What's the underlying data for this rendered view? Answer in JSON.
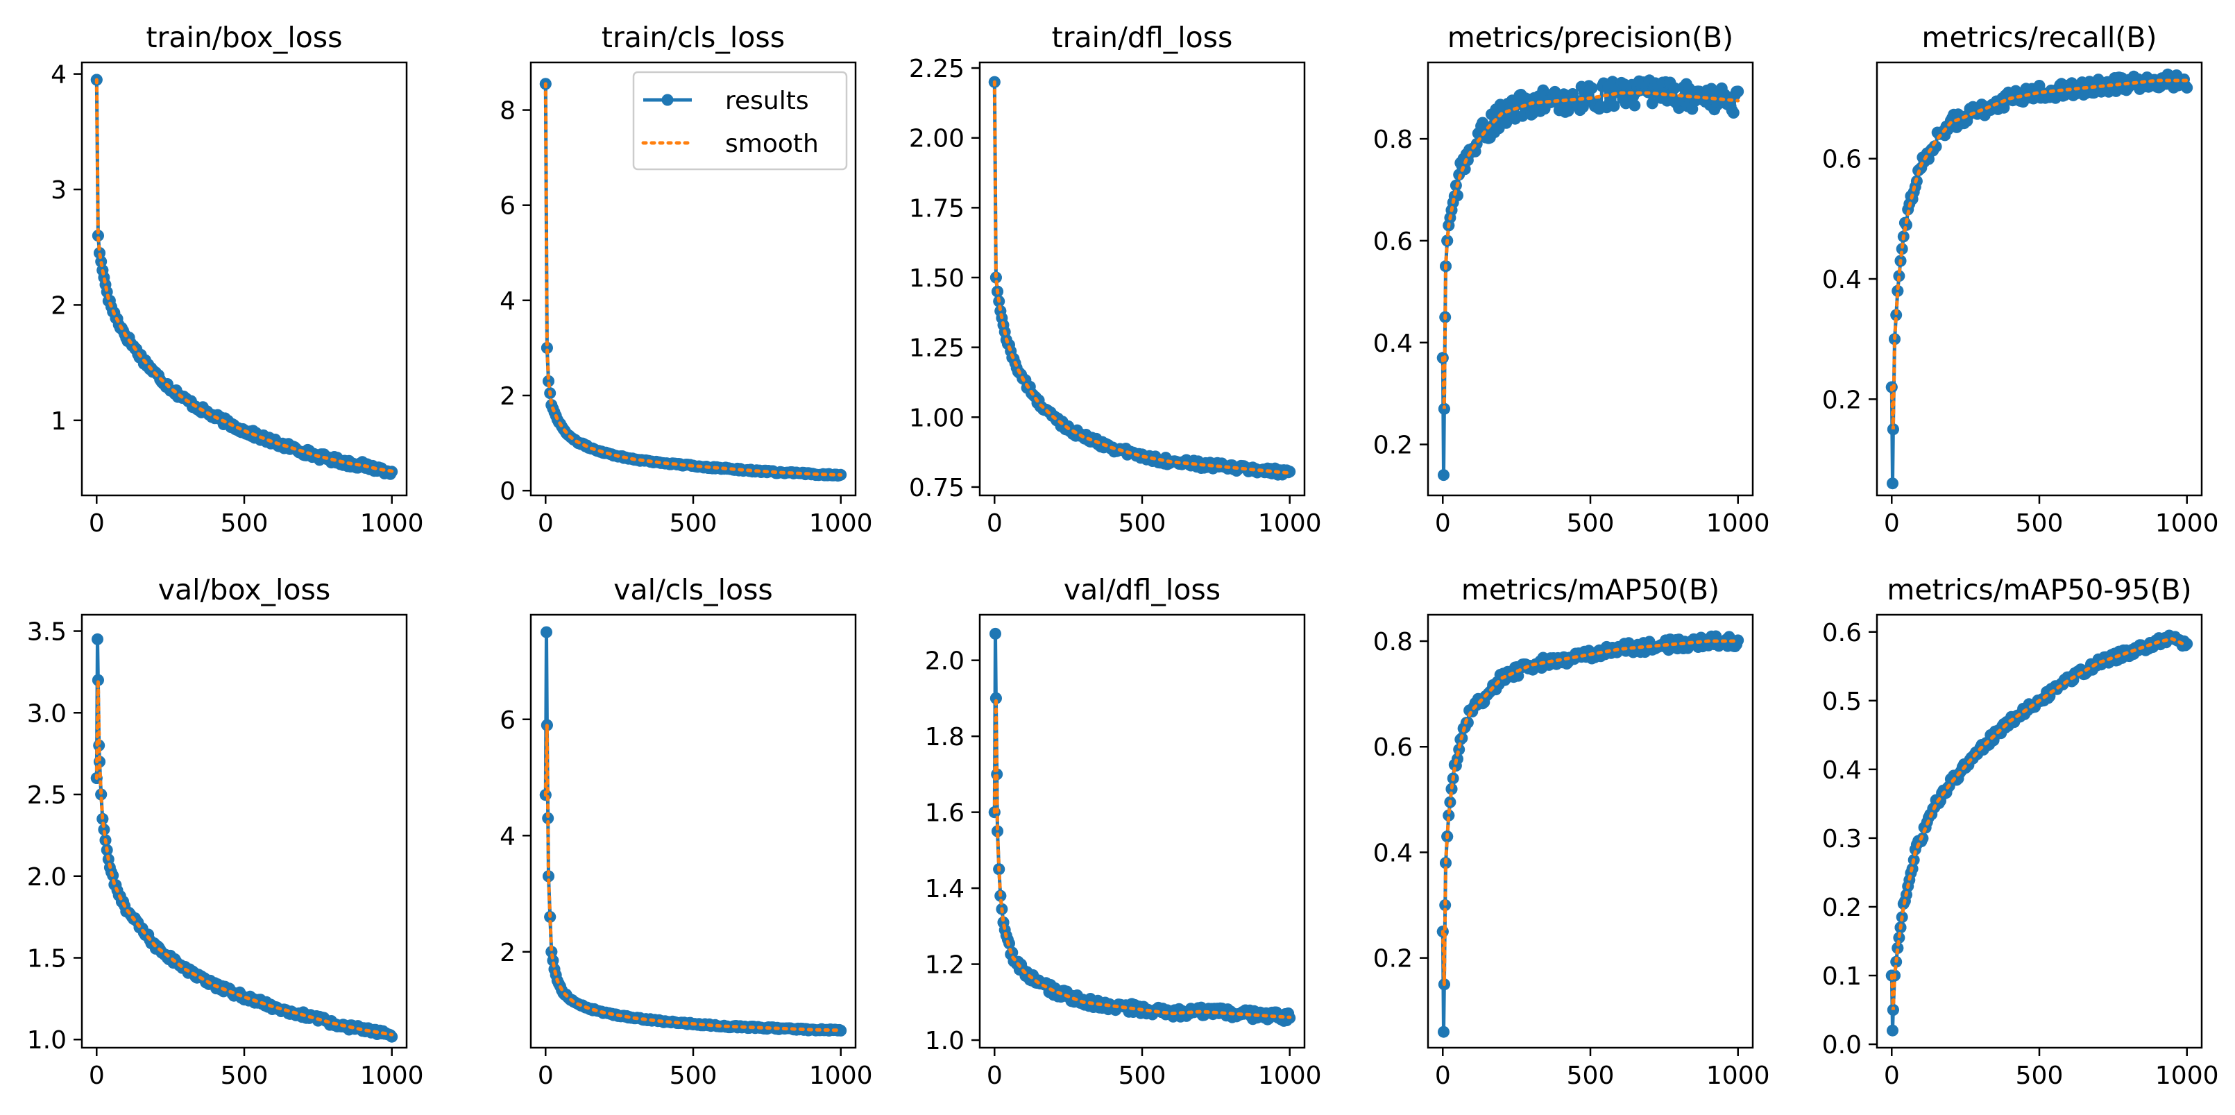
{
  "figure": {
    "legend": {
      "series_label": "results",
      "smooth_label": "smooth",
      "location": "upper right of train/cls_loss panel"
    },
    "colors": {
      "series": "#1f77b4",
      "smooth": "#ff7f0e"
    }
  },
  "chart_data": [
    {
      "type": "line",
      "title": "train/box_loss",
      "xlabel": "",
      "ylabel": "",
      "xlim": [
        -50,
        1050
      ],
      "ylim": [
        0.35,
        4.1
      ],
      "xticks": [
        0,
        500,
        1000
      ],
      "xtick_labels": [
        "0",
        "500",
        "1000"
      ],
      "yticks": [
        1,
        2,
        3,
        4
      ],
      "ytick_labels": [
        "1",
        "2",
        "3",
        "4"
      ],
      "x": [
        0,
        5,
        10,
        20,
        40,
        60,
        80,
        100,
        150,
        200,
        250,
        300,
        350,
        400,
        450,
        500,
        550,
        600,
        650,
        700,
        750,
        800,
        850,
        900,
        950,
        1000
      ],
      "values": [
        3.95,
        2.6,
        2.45,
        2.3,
        2.05,
        1.92,
        1.82,
        1.73,
        1.55,
        1.4,
        1.28,
        1.18,
        1.1,
        1.03,
        0.97,
        0.91,
        0.86,
        0.81,
        0.77,
        0.73,
        0.69,
        0.66,
        0.63,
        0.61,
        0.58,
        0.56
      ],
      "noise": 0.03
    },
    {
      "type": "line",
      "title": "train/cls_loss",
      "xlabel": "",
      "ylabel": "",
      "xlim": [
        -50,
        1050
      ],
      "ylim": [
        -0.1,
        9.0
      ],
      "xticks": [
        0,
        500,
        1000
      ],
      "xtick_labels": [
        "0",
        "500",
        "1000"
      ],
      "yticks": [
        0,
        2,
        4,
        6,
        8
      ],
      "ytick_labels": [
        "0",
        "2",
        "4",
        "6",
        "8"
      ],
      "x": [
        0,
        5,
        10,
        20,
        40,
        60,
        80,
        100,
        150,
        200,
        250,
        300,
        400,
        500,
        600,
        700,
        800,
        900,
        1000
      ],
      "values": [
        8.55,
        3.0,
        2.3,
        1.8,
        1.5,
        1.3,
        1.15,
        1.05,
        0.9,
        0.8,
        0.72,
        0.66,
        0.58,
        0.52,
        0.47,
        0.42,
        0.38,
        0.35,
        0.33
      ],
      "noise": 0.02
    },
    {
      "type": "line",
      "title": "train/dfl_loss",
      "xlabel": "",
      "ylabel": "",
      "xlim": [
        -50,
        1050
      ],
      "ylim": [
        0.72,
        2.27
      ],
      "xticks": [
        0,
        500,
        1000
      ],
      "xtick_labels": [
        "0",
        "500",
        "1000"
      ],
      "yticks": [
        0.75,
        1.0,
        1.25,
        1.5,
        1.75,
        2.0,
        2.25
      ],
      "ytick_labels": [
        "0.75",
        "1.00",
        "1.25",
        "1.50",
        "1.75",
        "2.00",
        "2.25"
      ],
      "x": [
        0,
        5,
        10,
        20,
        40,
        60,
        80,
        100,
        150,
        200,
        250,
        300,
        400,
        500,
        600,
        700,
        800,
        900,
        1000
      ],
      "values": [
        2.2,
        1.5,
        1.45,
        1.38,
        1.28,
        1.22,
        1.17,
        1.13,
        1.05,
        1.0,
        0.96,
        0.93,
        0.89,
        0.86,
        0.84,
        0.83,
        0.82,
        0.81,
        0.8
      ],
      "noise": 0.012
    },
    {
      "type": "line",
      "title": "metrics/precision(B)",
      "xlabel": "",
      "ylabel": "",
      "xlim": [
        -50,
        1050
      ],
      "ylim": [
        0.1,
        0.95
      ],
      "xticks": [
        0,
        500,
        1000
      ],
      "xtick_labels": [
        "0",
        "500",
        "1000"
      ],
      "yticks": [
        0.2,
        0.4,
        0.6,
        0.8
      ],
      "ytick_labels": [
        "0.2",
        "0.4",
        "0.6",
        "0.8"
      ],
      "x": [
        0,
        3,
        5,
        8,
        10,
        15,
        20,
        30,
        40,
        60,
        80,
        100,
        150,
        200,
        300,
        400,
        500,
        600,
        700,
        800,
        900,
        1000
      ],
      "values": [
        0.37,
        0.14,
        0.27,
        0.45,
        0.55,
        0.6,
        0.63,
        0.66,
        0.69,
        0.73,
        0.76,
        0.78,
        0.82,
        0.85,
        0.87,
        0.875,
        0.88,
        0.89,
        0.89,
        0.885,
        0.88,
        0.875
      ],
      "noise": 0.025
    },
    {
      "type": "line",
      "title": "metrics/recall(B)",
      "xlabel": "",
      "ylabel": "",
      "xlim": [
        -50,
        1050
      ],
      "ylim": [
        0.04,
        0.76
      ],
      "xticks": [
        0,
        500,
        1000
      ],
      "xtick_labels": [
        "0",
        "500",
        "1000"
      ],
      "yticks": [
        0.2,
        0.4,
        0.6
      ],
      "ytick_labels": [
        "0.2",
        "0.4",
        "0.6"
      ],
      "x": [
        0,
        3,
        5,
        10,
        20,
        30,
        40,
        60,
        80,
        100,
        150,
        200,
        300,
        400,
        500,
        600,
        700,
        800,
        900,
        1000
      ],
      "values": [
        0.22,
        0.06,
        0.15,
        0.3,
        0.38,
        0.43,
        0.47,
        0.52,
        0.56,
        0.59,
        0.63,
        0.66,
        0.68,
        0.7,
        0.71,
        0.715,
        0.72,
        0.725,
        0.73,
        0.73
      ],
      "noise": 0.012
    },
    {
      "type": "line",
      "title": "val/box_loss",
      "xlabel": "",
      "ylabel": "",
      "xlim": [
        -50,
        1050
      ],
      "ylim": [
        0.95,
        3.6
      ],
      "xticks": [
        0,
        500,
        1000
      ],
      "xtick_labels": [
        "0",
        "500",
        "1000"
      ],
      "yticks": [
        1.0,
        1.5,
        2.0,
        2.5,
        3.0,
        3.5
      ],
      "ytick_labels": [
        "1.0",
        "1.5",
        "2.0",
        "2.5",
        "3.0",
        "3.5"
      ],
      "x": [
        0,
        3,
        5,
        8,
        10,
        15,
        20,
        30,
        40,
        60,
        80,
        100,
        150,
        200,
        250,
        300,
        400,
        500,
        600,
        700,
        800,
        900,
        1000
      ],
      "values": [
        2.6,
        3.45,
        3.2,
        2.8,
        2.7,
        2.5,
        2.35,
        2.22,
        2.1,
        1.95,
        1.87,
        1.8,
        1.68,
        1.57,
        1.5,
        1.43,
        1.33,
        1.26,
        1.2,
        1.15,
        1.1,
        1.06,
        1.03
      ],
      "noise": 0.018
    },
    {
      "type": "line",
      "title": "val/cls_loss",
      "xlabel": "",
      "ylabel": "",
      "xlim": [
        -50,
        1050
      ],
      "ylim": [
        0.35,
        7.8
      ],
      "xticks": [
        0,
        500,
        1000
      ],
      "xtick_labels": [
        "0",
        "500",
        "1000"
      ],
      "yticks": [
        2,
        4,
        6
      ],
      "ytick_labels": [
        "2",
        "4",
        "6"
      ],
      "x": [
        0,
        3,
        5,
        8,
        10,
        15,
        20,
        30,
        40,
        60,
        80,
        100,
        150,
        200,
        300,
        400,
        500,
        600,
        700,
        800,
        900,
        1000
      ],
      "values": [
        4.7,
        7.5,
        5.9,
        4.3,
        3.3,
        2.6,
        2.0,
        1.7,
        1.5,
        1.3,
        1.2,
        1.12,
        1.02,
        0.95,
        0.86,
        0.8,
        0.76,
        0.72,
        0.7,
        0.68,
        0.66,
        0.65
      ],
      "noise": 0.015
    },
    {
      "type": "line",
      "title": "val/dfl_loss",
      "xlabel": "",
      "ylabel": "",
      "xlim": [
        -50,
        1050
      ],
      "ylim": [
        0.98,
        2.12
      ],
      "xticks": [
        0,
        500,
        1000
      ],
      "xtick_labels": [
        "0",
        "500",
        "1000"
      ],
      "yticks": [
        1.0,
        1.2,
        1.4,
        1.6,
        1.8,
        2.0
      ],
      "ytick_labels": [
        "1.0",
        "1.2",
        "1.4",
        "1.6",
        "1.8",
        "2.0"
      ],
      "x": [
        0,
        3,
        5,
        8,
        10,
        15,
        20,
        30,
        40,
        60,
        80,
        100,
        150,
        200,
        300,
        400,
        500,
        600,
        700,
        800,
        900,
        1000
      ],
      "values": [
        1.6,
        2.07,
        1.9,
        1.7,
        1.55,
        1.45,
        1.38,
        1.31,
        1.27,
        1.22,
        1.2,
        1.18,
        1.15,
        1.13,
        1.1,
        1.09,
        1.08,
        1.07,
        1.075,
        1.07,
        1.065,
        1.06
      ],
      "noise": 0.012
    },
    {
      "type": "line",
      "title": "metrics/mAP50(B)",
      "xlabel": "",
      "ylabel": "",
      "xlim": [
        -50,
        1050
      ],
      "ylim": [
        0.03,
        0.85
      ],
      "xticks": [
        0,
        500,
        1000
      ],
      "xtick_labels": [
        "0",
        "500",
        "1000"
      ],
      "yticks": [
        0.2,
        0.4,
        0.6,
        0.8
      ],
      "ytick_labels": [
        "0.2",
        "0.4",
        "0.6",
        "0.8"
      ],
      "x": [
        0,
        3,
        5,
        8,
        10,
        15,
        20,
        30,
        40,
        60,
        80,
        100,
        150,
        200,
        300,
        400,
        500,
        600,
        700,
        800,
        900,
        1000
      ],
      "values": [
        0.25,
        0.06,
        0.15,
        0.3,
        0.38,
        0.43,
        0.47,
        0.52,
        0.56,
        0.61,
        0.65,
        0.67,
        0.7,
        0.73,
        0.755,
        0.765,
        0.775,
        0.785,
        0.79,
        0.795,
        0.8,
        0.8
      ],
      "noise": 0.01
    },
    {
      "type": "line",
      "title": "metrics/mAP50-95(B)",
      "xlabel": "",
      "ylabel": "",
      "xlim": [
        -50,
        1050
      ],
      "ylim": [
        -0.005,
        0.625
      ],
      "xticks": [
        0,
        500,
        1000
      ],
      "xtick_labels": [
        "0",
        "500",
        "1000"
      ],
      "yticks": [
        0.0,
        0.1,
        0.2,
        0.3,
        0.4,
        0.5,
        0.6
      ],
      "ytick_labels": [
        "0.0",
        "0.1",
        "0.2",
        "0.3",
        "0.4",
        "0.5",
        "0.6"
      ],
      "x": [
        0,
        3,
        5,
        10,
        20,
        30,
        40,
        60,
        80,
        100,
        150,
        200,
        300,
        400,
        500,
        600,
        700,
        800,
        900,
        950,
        1000
      ],
      "values": [
        0.1,
        0.02,
        0.05,
        0.1,
        0.14,
        0.17,
        0.2,
        0.24,
        0.28,
        0.3,
        0.35,
        0.38,
        0.43,
        0.47,
        0.5,
        0.53,
        0.555,
        0.57,
        0.585,
        0.59,
        0.58
      ],
      "noise": 0.006
    }
  ]
}
